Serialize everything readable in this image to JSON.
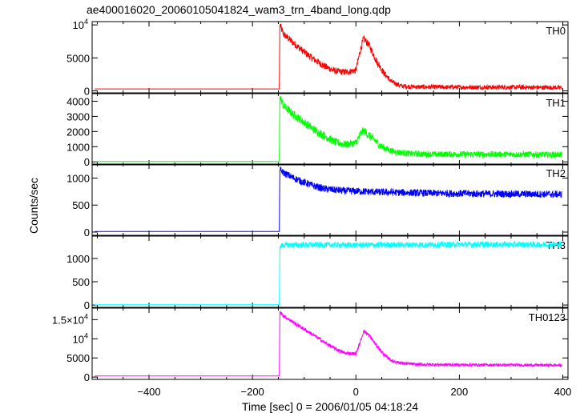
{
  "title": "ae400016020_20060105041824_wam3_trn_4band_long.qdp",
  "chart_data": {
    "type": "line",
    "title": "ae400016020_20060105041824_wam3_trn_4band_long.qdp",
    "xlabel": "Time [sec] 0 = 2006/01/05 04:18:24",
    "ylabel": "Counts/sec",
    "xlim": [
      -510,
      410
    ],
    "x_ticks": [
      -400,
      -200,
      0,
      200,
      400
    ],
    "x_tick_labels": [
      "−400",
      "−200",
      "0",
      "200",
      "400"
    ],
    "grid": false,
    "panels": [
      {
        "name": "TH0",
        "color": "#ff0000",
        "ylim": [
          -300,
          10500
        ],
        "ticks": [
          {
            "v": 10000,
            "label": "10",
            "sup": "4"
          },
          {
            "v": 5000,
            "label": "5000"
          },
          {
            "v": 0,
            "label": "0"
          }
        ],
        "series": [
          [
            -505,
            300
          ],
          [
            -148,
            300
          ],
          [
            -147,
            10000
          ],
          [
            -140,
            8600
          ],
          [
            -120,
            7200
          ],
          [
            -100,
            5900
          ],
          [
            -80,
            4700
          ],
          [
            -60,
            3700
          ],
          [
            -40,
            3000
          ],
          [
            -20,
            2850
          ],
          [
            0,
            3100
          ],
          [
            8,
            6000
          ],
          [
            15,
            7900
          ],
          [
            25,
            7000
          ],
          [
            40,
            4500
          ],
          [
            55,
            2600
          ],
          [
            70,
            1300
          ],
          [
            90,
            700
          ],
          [
            120,
            600
          ],
          [
            200,
            550
          ],
          [
            300,
            550
          ],
          [
            398,
            500
          ]
        ],
        "noise": 0.05
      },
      {
        "name": "TH1",
        "color": "#00ff00",
        "ylim": [
          -200,
          4500
        ],
        "ticks": [
          {
            "v": 4000,
            "label": "4000"
          },
          {
            "v": 3000,
            "label": "3000"
          },
          {
            "v": 2000,
            "label": "2000"
          },
          {
            "v": 1000,
            "label": "1000"
          },
          {
            "v": 0,
            "label": "0"
          }
        ],
        "series": [
          [
            -505,
            20
          ],
          [
            -148,
            20
          ],
          [
            -147,
            4300
          ],
          [
            -140,
            3700
          ],
          [
            -120,
            3100
          ],
          [
            -100,
            2600
          ],
          [
            -80,
            2100
          ],
          [
            -60,
            1700
          ],
          [
            -40,
            1300
          ],
          [
            -20,
            1150
          ],
          [
            0,
            1250
          ],
          [
            10,
            1900
          ],
          [
            15,
            2050
          ],
          [
            30,
            1600
          ],
          [
            50,
            1000
          ],
          [
            70,
            700
          ],
          [
            100,
            550
          ],
          [
            150,
            500
          ],
          [
            250,
            500
          ],
          [
            398,
            480
          ]
        ],
        "noise": 0.06
      },
      {
        "name": "TH2",
        "color": "#0000ff",
        "ylim": [
          -60,
          1260
        ],
        "ticks": [
          {
            "v": 1000,
            "label": "1000"
          },
          {
            "v": 500,
            "label": "500"
          },
          {
            "v": 0,
            "label": "0"
          }
        ],
        "series": [
          [
            -505,
            10
          ],
          [
            -148,
            10
          ],
          [
            -147,
            1150
          ],
          [
            -140,
            1100
          ],
          [
            -120,
            1000
          ],
          [
            -100,
            920
          ],
          [
            -80,
            850
          ],
          [
            -60,
            800
          ],
          [
            -40,
            780
          ],
          [
            -20,
            760
          ],
          [
            0,
            760
          ],
          [
            20,
            750
          ],
          [
            50,
            740
          ],
          [
            100,
            730
          ],
          [
            150,
            720
          ],
          [
            250,
            710
          ],
          [
            398,
            700
          ]
        ],
        "noise": 0.05
      },
      {
        "name": "TH3",
        "color": "#00ffff",
        "ylim": [
          -50,
          1480
        ],
        "ticks": [
          {
            "v": 1000,
            "label": "1000"
          },
          {
            "v": 500,
            "label": "500"
          },
          {
            "v": 0,
            "label": "0"
          }
        ],
        "series": [
          [
            -505,
            5
          ],
          [
            -148,
            5
          ],
          [
            -147,
            1250
          ],
          [
            -140,
            1290
          ],
          [
            0,
            1290
          ],
          [
            200,
            1300
          ],
          [
            398,
            1300
          ]
        ],
        "noise": 0.04
      },
      {
        "name": "TH0123",
        "color": "#ff00ff",
        "ylim": [
          -600,
          18000
        ],
        "ticks": [
          {
            "v": 15000,
            "label": "1.5×10",
            "sup": "4"
          },
          {
            "v": 10000,
            "label": "10",
            "sup": "4"
          },
          {
            "v": 5000,
            "label": "5000"
          },
          {
            "v": 0,
            "label": "0"
          }
        ],
        "series": [
          [
            -505,
            300
          ],
          [
            -148,
            300
          ],
          [
            -147,
            17000
          ],
          [
            -140,
            16000
          ],
          [
            -120,
            14200
          ],
          [
            -100,
            12500
          ],
          [
            -80,
            10800
          ],
          [
            -60,
            9000
          ],
          [
            -40,
            7400
          ],
          [
            -20,
            6200
          ],
          [
            0,
            6100
          ],
          [
            8,
            9000
          ],
          [
            15,
            12000
          ],
          [
            25,
            11000
          ],
          [
            40,
            8200
          ],
          [
            55,
            5700
          ],
          [
            70,
            4200
          ],
          [
            90,
            3600
          ],
          [
            120,
            3300
          ],
          [
            200,
            3200
          ],
          [
            300,
            3150
          ],
          [
            398,
            3100
          ]
        ],
        "noise": 0.025
      }
    ]
  }
}
